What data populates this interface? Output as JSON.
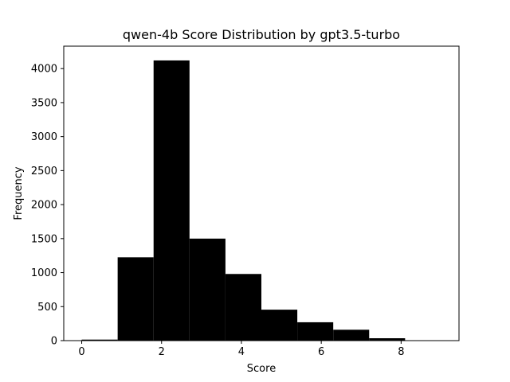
{
  "chart_data": {
    "type": "bar",
    "title": "qwen-4b Score Distribution by gpt3.5-turbo",
    "xlabel": "Score",
    "ylabel": "Frequency",
    "xlim": [
      -0.45,
      9.45
    ],
    "ylim": [
      0,
      4330
    ],
    "bins": [
      {
        "start": 0.0,
        "end": 0.9,
        "value": 15
      },
      {
        "start": 0.9,
        "end": 1.8,
        "value": 1225
      },
      {
        "start": 1.8,
        "end": 2.7,
        "value": 4120
      },
      {
        "start": 2.7,
        "end": 3.6,
        "value": 1500
      },
      {
        "start": 3.6,
        "end": 4.5,
        "value": 980
      },
      {
        "start": 4.5,
        "end": 5.4,
        "value": 455
      },
      {
        "start": 5.4,
        "end": 6.3,
        "value": 270
      },
      {
        "start": 6.3,
        "end": 7.2,
        "value": 160
      },
      {
        "start": 7.2,
        "end": 8.1,
        "value": 35
      },
      {
        "start": 8.1,
        "end": 9.0,
        "value": 5
      }
    ],
    "x_ticks": [
      0,
      2,
      4,
      6,
      8
    ],
    "x_tick_labels": [
      "0",
      "2",
      "4",
      "6",
      "8"
    ],
    "y_ticks": [
      0,
      500,
      1000,
      1500,
      2000,
      2500,
      3000,
      3500,
      4000
    ],
    "y_tick_labels": [
      "0",
      "500",
      "1000",
      "1500",
      "2000",
      "2500",
      "3000",
      "3500",
      "4000"
    ],
    "bar_color": "#000000",
    "grid": false,
    "legend": "none"
  }
}
